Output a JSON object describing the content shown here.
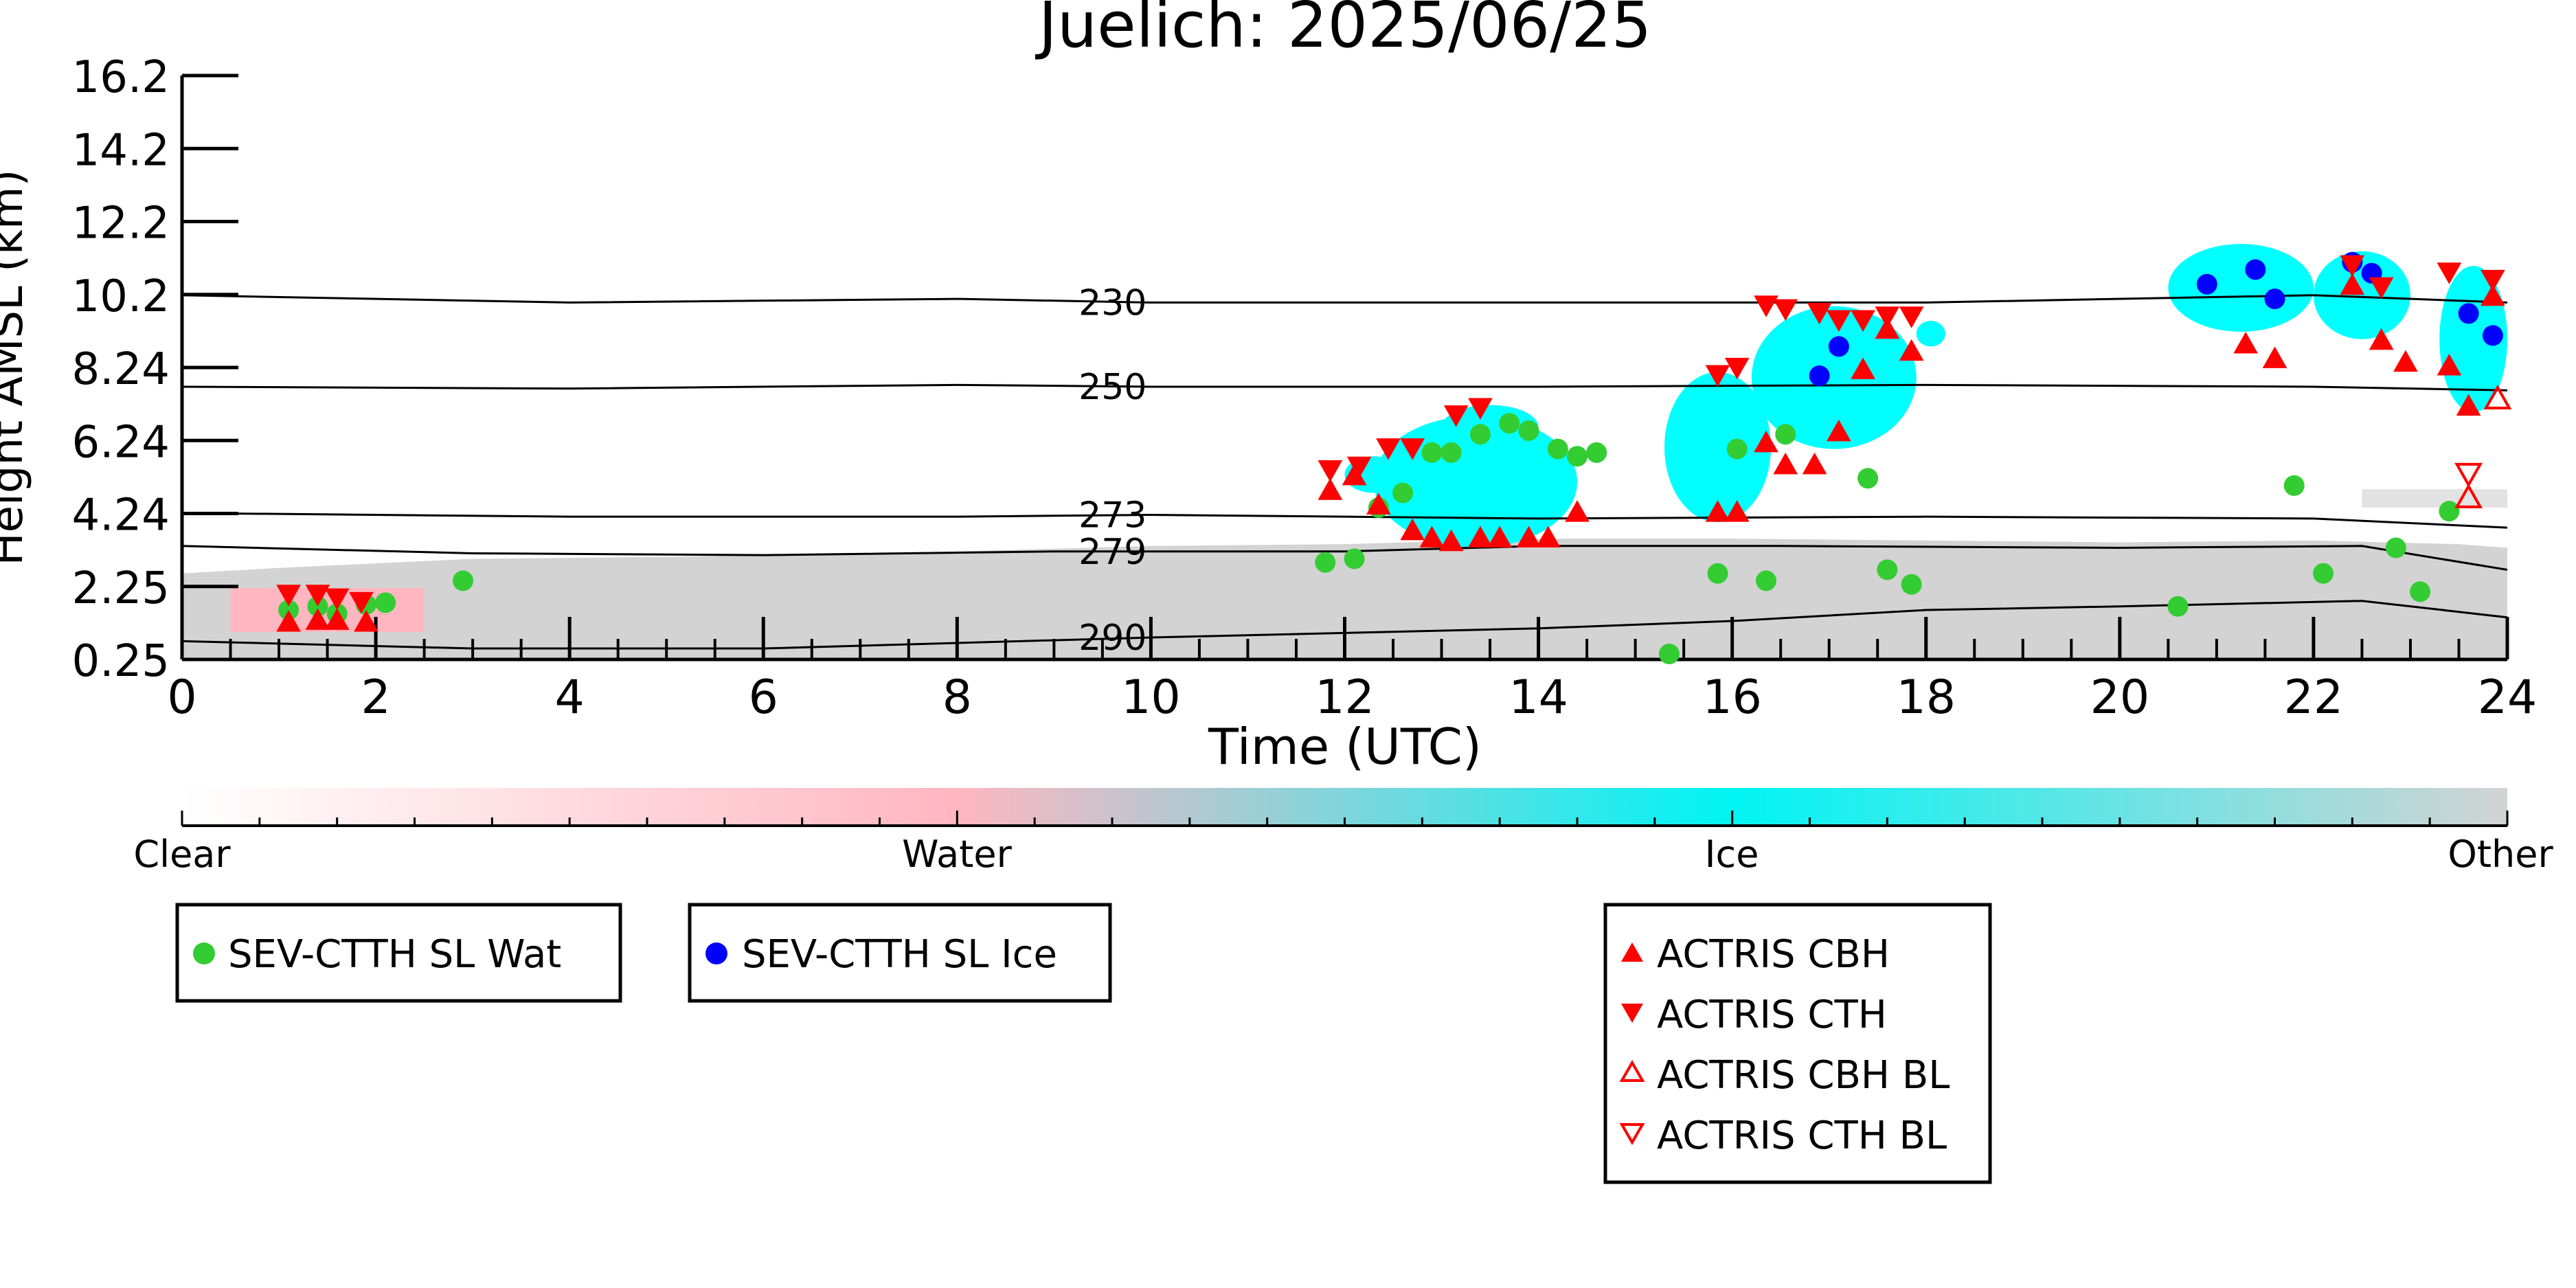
{
  "chart_data": {
    "type": "scatter",
    "title": "Juelich: 2025/06/25",
    "xlabel": "Time (UTC)",
    "ylabel": "Height AMSL (km)",
    "xlim": [
      0,
      24
    ],
    "ylim": [
      0.25,
      16.2
    ],
    "x_ticks": [
      0,
      2,
      4,
      6,
      8,
      10,
      12,
      14,
      16,
      18,
      20,
      22,
      24
    ],
    "y_ticks": [
      "0.25",
      "2.25",
      "4.24",
      "6.24",
      "8.24",
      "10.2",
      "12.2",
      "14.2",
      "16.2"
    ],
    "grid": false,
    "colorbar": {
      "labels": [
        "Clear",
        "Water",
        "Ice",
        "Other"
      ],
      "colors": [
        "#ffffff",
        "#ffb6c1",
        "#00ffff",
        "#d3d3d3"
      ]
    },
    "isotherms": [
      {
        "label": "230",
        "points": [
          [
            0,
            10.2
          ],
          [
            4,
            10.0
          ],
          [
            8,
            10.1
          ],
          [
            10,
            10.0
          ],
          [
            14,
            10.0
          ],
          [
            18,
            10.0
          ],
          [
            22,
            10.2
          ],
          [
            24,
            10.0
          ]
        ]
      },
      {
        "label": "250",
        "points": [
          [
            0,
            7.7
          ],
          [
            4,
            7.65
          ],
          [
            8,
            7.75
          ],
          [
            10,
            7.7
          ],
          [
            14,
            7.7
          ],
          [
            18,
            7.75
          ],
          [
            22,
            7.7
          ],
          [
            24,
            7.6
          ]
        ]
      },
      {
        "label": "273",
        "points": [
          [
            0,
            4.25
          ],
          [
            4,
            4.15
          ],
          [
            8,
            4.15
          ],
          [
            10,
            4.2
          ],
          [
            14,
            4.1
          ],
          [
            18,
            4.15
          ],
          [
            22,
            4.1
          ],
          [
            24,
            3.85
          ]
        ]
      },
      {
        "label": "279",
        "points": [
          [
            0,
            3.35
          ],
          [
            3,
            3.15
          ],
          [
            6,
            3.1
          ],
          [
            9,
            3.2
          ],
          [
            12,
            3.2
          ],
          [
            14,
            3.35
          ],
          [
            16.5,
            3.35
          ],
          [
            20,
            3.3
          ],
          [
            22.5,
            3.35
          ],
          [
            24,
            2.7
          ]
        ]
      },
      {
        "label": "290",
        "points": [
          [
            0,
            0.75
          ],
          [
            3,
            0.55
          ],
          [
            6,
            0.55
          ],
          [
            10,
            0.85
          ],
          [
            14,
            1.1
          ],
          [
            16,
            1.3
          ],
          [
            18,
            1.6
          ],
          [
            20,
            1.7
          ],
          [
            22.5,
            1.85
          ],
          [
            24,
            1.4
          ]
        ]
      }
    ],
    "series": [
      {
        "name": "SEV-CTTH SL Wat",
        "marker": "circle",
        "color": "#33cc33",
        "x": [
          1.1,
          1.4,
          1.6,
          1.9,
          2.1,
          2.9,
          11.8,
          12.1,
          12.35,
          12.6,
          12.9,
          13.1,
          13.4,
          13.7,
          13.9,
          14.2,
          14.4,
          14.6,
          15.35,
          15.85,
          16.05,
          16.35,
          16.55,
          17.4,
          17.6,
          17.85,
          20.6,
          21.8,
          22.1,
          22.85,
          23.1,
          23.4
        ],
        "y": [
          1.6,
          1.7,
          1.5,
          1.75,
          1.8,
          2.4,
          2.9,
          3.0,
          4.4,
          4.8,
          5.9,
          5.9,
          6.4,
          6.7,
          6.5,
          6.0,
          5.8,
          5.9,
          0.4,
          2.6,
          6.0,
          2.4,
          6.4,
          5.2,
          2.7,
          2.3,
          1.7,
          5.0,
          2.6,
          3.3,
          2.1,
          4.3
        ]
      },
      {
        "name": "SEV-CTTH SL Ice",
        "marker": "circle",
        "color": "#0000ff",
        "x": [
          16.9,
          17.1,
          20.9,
          21.4,
          21.6,
          22.4,
          22.6,
          23.6,
          23.85
        ],
        "y": [
          8.0,
          8.8,
          10.5,
          10.9,
          10.1,
          11.1,
          10.8,
          9.7,
          9.1
        ]
      },
      {
        "name": "ACTRIS CBH",
        "marker": "triangle-up",
        "color": "#ff0000",
        "filled": true,
        "x": [
          1.1,
          1.4,
          1.6,
          1.9,
          11.85,
          12.1,
          12.35,
          12.7,
          12.9,
          13.1,
          13.4,
          13.6,
          13.9,
          14.1,
          14.4,
          15.85,
          16.05,
          16.35,
          16.55,
          16.85,
          17.1,
          17.35,
          17.6,
          17.85,
          21.3,
          21.6,
          22.4,
          22.7,
          22.95,
          23.4,
          23.6,
          23.85
        ],
        "y": [
          1.3,
          1.35,
          1.35,
          1.3,
          4.9,
          5.3,
          4.5,
          3.8,
          3.6,
          3.5,
          3.6,
          3.6,
          3.6,
          3.6,
          4.3,
          4.3,
          4.3,
          6.2,
          5.6,
          5.6,
          6.5,
          8.2,
          9.3,
          8.7,
          8.9,
          8.5,
          10.5,
          9.0,
          8.4,
          8.3,
          7.2,
          10.2
        ]
      },
      {
        "name": "ACTRIS CTH",
        "marker": "triangle-down",
        "color": "#ff0000",
        "filled": true,
        "x": [
          1.1,
          1.4,
          1.6,
          1.85,
          11.85,
          12.15,
          12.45,
          12.7,
          13.15,
          13.4,
          16.35,
          16.9,
          16.55,
          17.1,
          17.35,
          17.6,
          15.85,
          16.05,
          17.85,
          22.4,
          22.7,
          23.4,
          23.85
        ],
        "y": [
          2.0,
          2.0,
          1.9,
          1.8,
          5.4,
          5.5,
          6.0,
          6.0,
          6.9,
          7.1,
          9.9,
          9.7,
          9.8,
          9.5,
          9.5,
          9.6,
          8.0,
          8.2,
          9.6,
          11.0,
          10.4,
          10.8,
          10.6
        ]
      },
      {
        "name": "ACTRIS CBH BL",
        "marker": "triangle-up",
        "color": "#ff0000",
        "filled": false,
        "x": [
          23.6,
          23.9
        ],
        "y": [
          4.7,
          7.4
        ]
      },
      {
        "name": "ACTRIS CTH BL",
        "marker": "triangle-down",
        "color": "#ff0000",
        "filled": false,
        "x": [
          23.6
        ],
        "y": [
          5.3
        ]
      }
    ]
  }
}
